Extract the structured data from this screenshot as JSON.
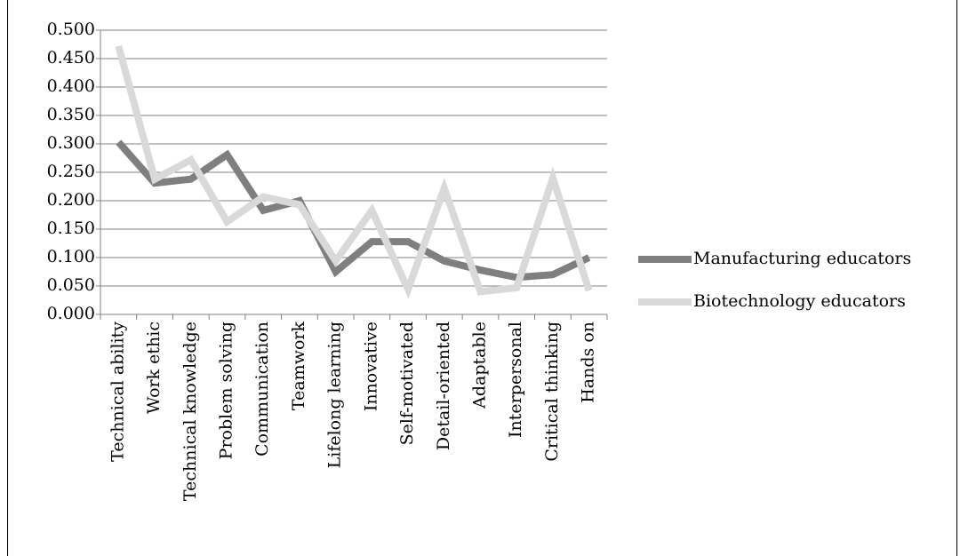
{
  "chart_data": {
    "type": "line",
    "categories": [
      "Technical ability",
      "Work ethic",
      "Technical knowledge",
      "Problem solving",
      "Communication",
      "Teamwork",
      "Lifelong learning",
      "Innovative",
      "Self-motivated",
      "Detail-oriented",
      "Adaptable",
      "Interpersonal",
      "Critical thinking",
      "Hands on"
    ],
    "series": [
      {
        "name": "Manufacturing educators",
        "color": "#7f7f7f",
        "values": [
          0.303,
          0.231,
          0.238,
          0.281,
          0.183,
          0.2,
          0.075,
          0.128,
          0.128,
          0.094,
          0.078,
          0.065,
          0.07,
          0.1
        ]
      },
      {
        "name": "Biotechnology educators",
        "color": "#d9d9d9",
        "values": [
          0.472,
          0.238,
          0.272,
          0.163,
          0.207,
          0.193,
          0.094,
          0.183,
          0.044,
          0.222,
          0.04,
          0.047,
          0.24,
          0.042
        ]
      }
    ],
    "ylim": [
      0,
      0.5
    ],
    "yticks": [
      {
        "value": 0,
        "label": "0.000"
      },
      {
        "value": 0.05,
        "label": "0.050"
      },
      {
        "value": 0.1,
        "label": "0.100"
      },
      {
        "value": 0.15,
        "label": "0.150"
      },
      {
        "value": 0.2,
        "label": "0.200"
      },
      {
        "value": 0.25,
        "label": "0.250"
      },
      {
        "value": 0.3,
        "label": "0.300"
      },
      {
        "value": 0.35,
        "label": "0.350"
      },
      {
        "value": 0.4,
        "label": "0.400"
      },
      {
        "value": 0.45,
        "label": "0.450"
      },
      {
        "value": 0.5,
        "label": "0.500"
      }
    ],
    "grid": true,
    "legend": "right"
  }
}
